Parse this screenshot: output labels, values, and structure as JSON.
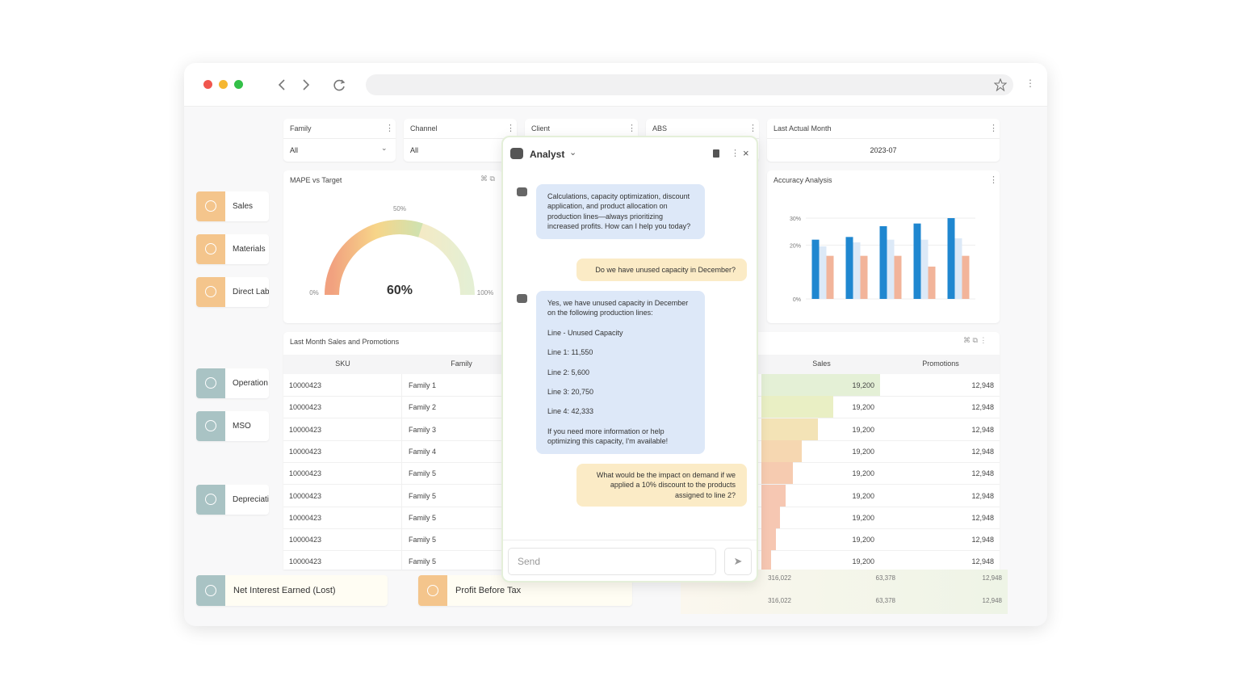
{
  "filters": [
    {
      "label": "Family",
      "value": "All"
    },
    {
      "label": "Channel",
      "value": "All"
    },
    {
      "label": "Client"
    },
    {
      "label": "ABS"
    },
    {
      "label": "Last Actual Month",
      "value": "2023-07"
    }
  ],
  "nav": [
    "Sales",
    "Materials",
    "Direct Lab",
    "Operation",
    "MSO",
    "Depreciati"
  ],
  "gauge": {
    "title": "MAPE vs Target",
    "value": 60,
    "value_label": "60%",
    "ticks": [
      {
        "value": 0,
        "label": "0%"
      },
      {
        "value": 50,
        "label": "50%"
      },
      {
        "value": 100,
        "label": "100%"
      }
    ]
  },
  "chart_data": {
    "type": "bar",
    "title": "Accuracy Analysis",
    "categories": [
      null,
      null,
      null,
      null,
      null
    ],
    "series": [
      {
        "color": "#1f87d0",
        "values": [
          22,
          23,
          27,
          28,
          30
        ]
      },
      {
        "color": "#dce9f7",
        "values": [
          19.5,
          21,
          22,
          22,
          22.5
        ]
      },
      {
        "color": "#f2b49a",
        "values": [
          16,
          16,
          16,
          12,
          16
        ]
      }
    ],
    "ylim": [
      0,
      30
    ],
    "yticks": [
      {
        "value": 0,
        "label": "0%"
      },
      {
        "value": 20,
        "label": "20%"
      },
      {
        "value": 30,
        "label": "30%"
      }
    ],
    "grid": true
  },
  "table": {
    "title": "Last Month Sales and Promotions",
    "columns": [
      "SKU",
      "Family",
      "Sales",
      "Promotions"
    ],
    "rows": [
      [
        "10000423",
        "Family 1",
        "19,200",
        "12,948"
      ],
      [
        "10000423",
        "Family 2",
        "19,200",
        "12,948"
      ],
      [
        "10000423",
        "Family 3",
        "19,200",
        "12,948"
      ],
      [
        "10000423",
        "Family 4",
        "19,200",
        "12,948"
      ],
      [
        "10000423",
        "Family 5",
        "19,200",
        "12,948"
      ],
      [
        "10000423",
        "Family 5",
        "19,200",
        "12,948"
      ],
      [
        "10000423",
        "Family 5",
        "19,200",
        "12,948"
      ],
      [
        "10000423",
        "Family 5",
        "19,200",
        "12,948"
      ],
      [
        "10000423",
        "Family 5",
        "19,200",
        "12,948"
      ]
    ],
    "totals": [
      [
        "316,022",
        "63,378",
        "12,948"
      ],
      [
        "316,022",
        "63,378",
        "12,948"
      ]
    ]
  },
  "cards": [
    "Net Interest Earned (Lost)",
    "Profit Before Tax"
  ],
  "chat": {
    "title": "Analyst",
    "exchanges": [
      {
        "reply": [
          "Calculations, capacity optimization, discount application, and product allocation on production lines—always prioritizing increased profits. How can I help you today?"
        ],
        "question": "Do we have unused capacity in December?"
      },
      {
        "reply": [
          "Yes, we have unused capacity in December on the following production lines:",
          "Line - Unused Capacity",
          "Line 1: 11,550",
          "Line 2: 5,600",
          "Line 3: 20,750",
          "Line 4: 42,333",
          "If you need more information or help optimizing this capacity, I'm available!"
        ],
        "question": "What would be the impact on demand if we applied a 10% discount to the products assigned to line 2?"
      }
    ],
    "input_placeholder": "Send"
  }
}
